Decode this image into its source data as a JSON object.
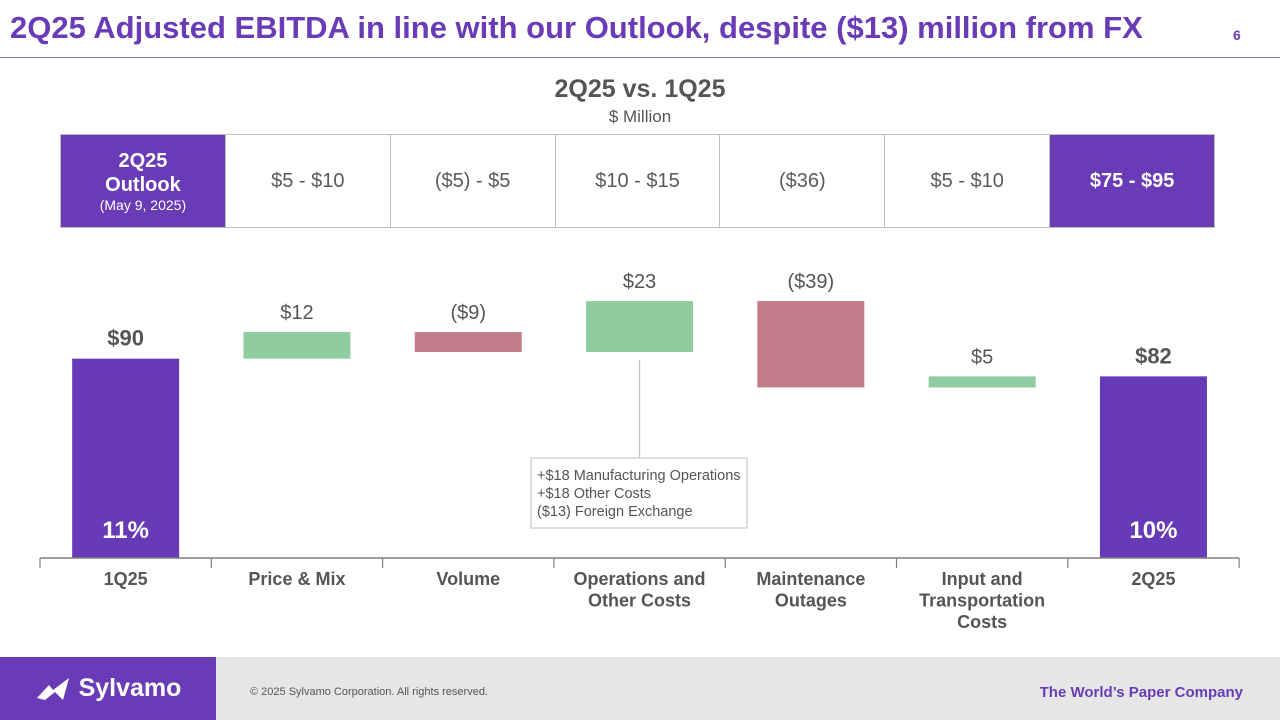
{
  "header": {
    "title": "2Q25 Adjusted EBITDA in line with our Outlook, despite ($13) million from FX",
    "page_number": "6"
  },
  "outlook": {
    "label_line1": "2Q25",
    "label_line2": "Outlook",
    "label_date": "(May 9, 2025)",
    "cells": [
      "$5 - $10",
      "($5) - $5",
      "$10 - $15",
      "($36)",
      "$5 - $10",
      "$75 - $95"
    ]
  },
  "annotation": {
    "lines": [
      "+$18 Manufacturing Operations",
      "+$18 Other Costs",
      "($13) Foreign Exchange"
    ]
  },
  "chart_data": {
    "type": "waterfall",
    "title": "2Q25 vs. 1Q25",
    "subtitle": "$ Million",
    "categories": [
      "1Q25",
      "Price & Mix",
      "Volume",
      "Operations and Other Costs",
      "Maintenance Outages",
      "Input and Transportation Costs",
      "2Q25"
    ],
    "category_lines": [
      [
        "1Q25"
      ],
      [
        "Price & Mix"
      ],
      [
        "Volume"
      ],
      [
        "Operations and",
        "Other Costs"
      ],
      [
        "Maintenance",
        "Outages"
      ],
      [
        "Input and",
        "Transportation",
        "Costs"
      ],
      [
        "2Q25"
      ]
    ],
    "values": [
      90,
      12,
      -9,
      23,
      -39,
      5,
      82
    ],
    "kinds": [
      "total",
      "delta",
      "delta",
      "delta",
      "delta",
      "delta",
      "total"
    ],
    "value_labels": [
      "$90",
      "$12",
      "($9)",
      "$23",
      "($39)",
      "$5",
      "$82"
    ],
    "margin_labels": [
      "11%",
      "",
      "",
      "",
      "",
      "",
      "10%"
    ],
    "colors": {
      "total": "#673ab7",
      "increase": "#8fcc9f",
      "decrease": "#c17e88"
    }
  },
  "footer": {
    "logo_text": "Sylvamo",
    "copyright": "© 2025 Sylvamo Corporation. All rights reserved.",
    "tagline": "The World’s Paper Company"
  }
}
